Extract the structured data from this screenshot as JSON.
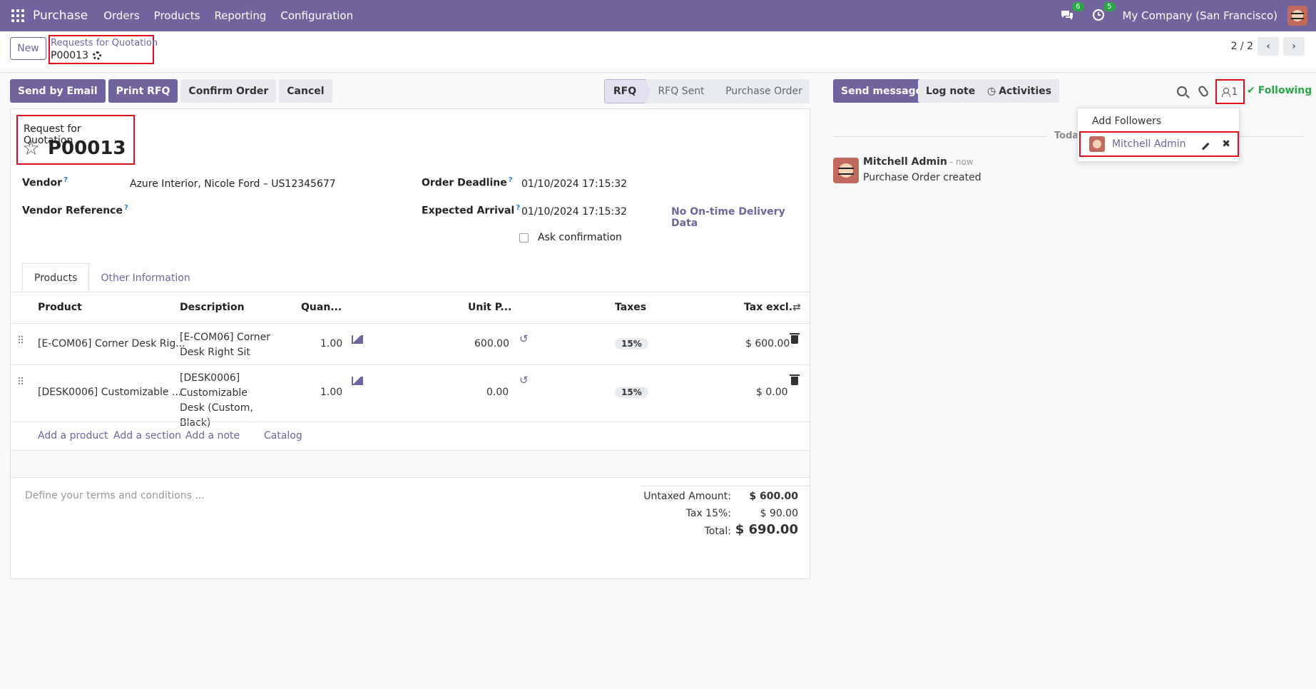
{
  "nav": {
    "app": "Purchase",
    "items": [
      "Orders",
      "Products",
      "Reporting",
      "Configuration"
    ],
    "messages_count": "6",
    "activities_count": "5",
    "company": "My Company (San Francisco)"
  },
  "control": {
    "new_label": "New",
    "breadcrumb_parent": "Requests for Quotation",
    "breadcrumb_current": "P00013",
    "pager": "2 / 2",
    "pager_prev": "‹",
    "pager_next": "›"
  },
  "actions": {
    "send_email": "Send by Email",
    "print_rfq": "Print RFQ",
    "confirm": "Confirm Order",
    "cancel": "Cancel"
  },
  "status": [
    "RFQ",
    "RFQ Sent",
    "Purchase Order"
  ],
  "form": {
    "title_label": "Request for Quotation",
    "number": "P00013",
    "vendor_label": "Vendor",
    "vendor_value": "Azure Interior, Nicole Ford – US12345677",
    "vendor_ref_label": "Vendor Reference",
    "deadline_label": "Order Deadline",
    "deadline_value": "01/10/2024 17:15:32",
    "arrival_label": "Expected Arrival",
    "arrival_value": "01/10/2024 17:15:32",
    "ontime": "No On-time Delivery Data",
    "ask_confirmation": "Ask confirmation",
    "help_mark": "?"
  },
  "tabs": [
    "Products",
    "Other Information"
  ],
  "table": {
    "headers": [
      "Product",
      "Description",
      "Quan...",
      "Unit P...",
      "Taxes",
      "Tax excl."
    ],
    "rows": [
      {
        "product": "[E-COM06] Corner Desk Rig...",
        "description": "[E-COM06] Corner Desk Right Sit",
        "qty": "1.00",
        "unit_price": "600.00",
        "tax": "15%",
        "subtotal": "$ 600.00"
      },
      {
        "product": "[DESK0006] Customizable ...",
        "description": "[DESK0006] Customizable Desk (Custom, Black)",
        "qty": "1.00",
        "unit_price": "0.00",
        "tax": "15%",
        "subtotal": "$ 0.00"
      }
    ],
    "add_product": "Add a product",
    "add_section": "Add a section",
    "add_note": "Add a note",
    "catalog": "Catalog"
  },
  "terms_placeholder": "Define your terms and conditions ...",
  "totals": {
    "untaxed_label": "Untaxed Amount:",
    "untaxed_value": "$ 600.00",
    "tax_label": "Tax 15%:",
    "tax_value": "$ 90.00",
    "total_label": "Total:",
    "total_value": "$ 690.00"
  },
  "chatter": {
    "send_message": "Send message",
    "log_note": "Log note",
    "activities": "Activities",
    "followers_count": "1",
    "following": "Following",
    "today": "Today",
    "author": "Mitchell Admin",
    "time": " - now",
    "message": "Purchase Order created",
    "dropdown": {
      "add_followers": "Add Followers",
      "follower_name": "Mitchell Admin"
    }
  }
}
